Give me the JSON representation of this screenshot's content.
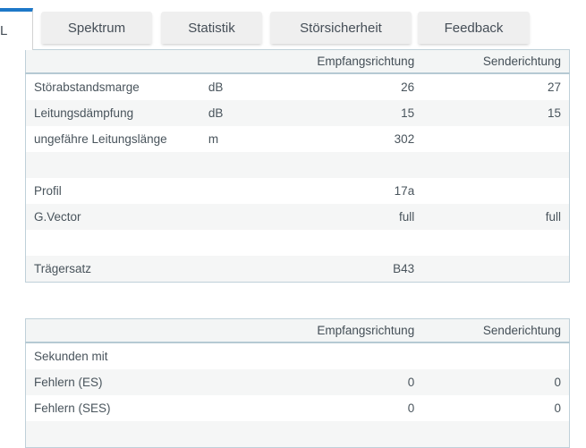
{
  "colors": {
    "accent_blue": "#1e78c8",
    "tab_background": "#efefef",
    "table_border": "#bfd0d9",
    "header_background": "#f3f5f5",
    "stripe_background": "#f5f6f6",
    "text": "#49545c"
  },
  "tabs": {
    "active": {
      "label": "L"
    },
    "items": [
      {
        "label": "Spektrum"
      },
      {
        "label": "Statistik"
      },
      {
        "label": "Störsicherheit"
      },
      {
        "label": "Feedback"
      }
    ]
  },
  "table1": {
    "headers": {
      "recv": "Empfangsrichtung",
      "send": "Senderichtung"
    },
    "rows": [
      {
        "label": "Störabstandsmarge",
        "unit": "dB",
        "recv": "26",
        "send": "27"
      },
      {
        "label": "Leitungsdämpfung",
        "unit": "dB",
        "recv": "15",
        "send": "15"
      },
      {
        "label": "ungefähre Leitungslänge",
        "unit": "m",
        "recv": "302",
        "send": ""
      },
      {
        "label": "",
        "unit": "",
        "recv": "",
        "send": ""
      },
      {
        "label": "Profil",
        "unit": "",
        "recv": "17a",
        "send": ""
      },
      {
        "label": "G.Vector",
        "unit": "",
        "recv": "full",
        "send": "full"
      },
      {
        "label": "",
        "unit": "",
        "recv": "",
        "send": ""
      },
      {
        "label": "Trägersatz",
        "unit": "",
        "recv": "B43",
        "send": ""
      }
    ]
  },
  "table2": {
    "headers": {
      "recv": "Empfangsrichtung",
      "send": "Senderichtung"
    },
    "rows": [
      {
        "label": "Sekunden mit",
        "unit": "",
        "recv": "",
        "send": ""
      },
      {
        "label": "Fehlern (ES)",
        "unit": "",
        "recv": "0",
        "send": "0"
      },
      {
        "label": "Fehlern (SES)",
        "unit": "",
        "recv": "0",
        "send": "0"
      },
      {
        "label": "",
        "unit": "",
        "recv": "",
        "send": ""
      }
    ]
  }
}
